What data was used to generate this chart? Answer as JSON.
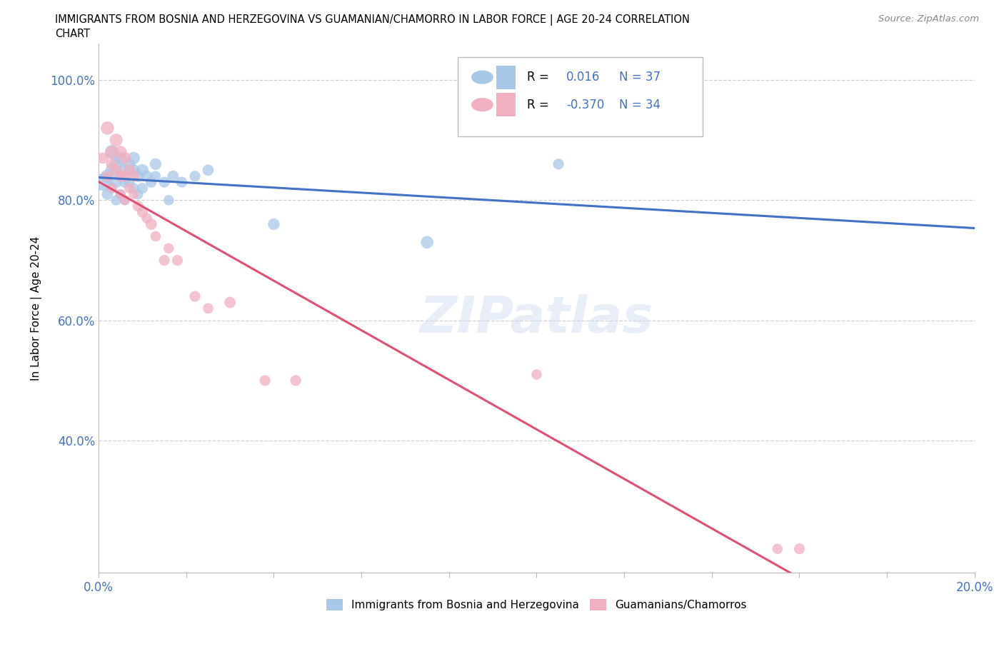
{
  "title_line1": "IMMIGRANTS FROM BOSNIA AND HERZEGOVINA VS GUAMANIAN/CHAMORRO IN LABOR FORCE | AGE 20-24 CORRELATION",
  "title_line2": "CHART",
  "source_text": "Source: ZipAtlas.com",
  "ylabel": "In Labor Force | Age 20-24",
  "xlim": [
    0.0,
    0.2
  ],
  "ylim": [
    0.18,
    1.06
  ],
  "xticks": [
    0.0,
    0.02,
    0.04,
    0.06,
    0.08,
    0.1,
    0.12,
    0.14,
    0.16,
    0.18,
    0.2
  ],
  "xticklabels": [
    "0.0%",
    "",
    "",
    "",
    "",
    "",
    "",
    "",
    "",
    "",
    "20.0%"
  ],
  "yticks": [
    0.4,
    0.6,
    0.8,
    1.0
  ],
  "yticklabels": [
    "40.0%",
    "60.0%",
    "80.0%",
    "100.0%"
  ],
  "r_bosnia": 0.016,
  "n_bosnia": 37,
  "r_guam": -0.37,
  "n_guam": 34,
  "bosnia_color": "#a8c8e8",
  "guam_color": "#f0b0c0",
  "trendline_bosnia_color": "#4472c4",
  "trendline_guam_color": "#e05070",
  "grid_color": "#d0d0d0",
  "background_color": "#ffffff",
  "watermark": "ZIPatlas",
  "bosnia_x": [
    0.001,
    0.002,
    0.002,
    0.003,
    0.003,
    0.003,
    0.004,
    0.004,
    0.004,
    0.005,
    0.005,
    0.005,
    0.006,
    0.006,
    0.006,
    0.007,
    0.007,
    0.008,
    0.008,
    0.008,
    0.009,
    0.009,
    0.01,
    0.01,
    0.011,
    0.012,
    0.013,
    0.013,
    0.015,
    0.016,
    0.017,
    0.019,
    0.022,
    0.025,
    0.04,
    0.075,
    0.105
  ],
  "bosnia_y": [
    0.83,
    0.84,
    0.81,
    0.88,
    0.85,
    0.82,
    0.86,
    0.83,
    0.8,
    0.87,
    0.84,
    0.81,
    0.85,
    0.83,
    0.8,
    0.86,
    0.83,
    0.87,
    0.85,
    0.82,
    0.84,
    0.81,
    0.85,
    0.82,
    0.84,
    0.83,
    0.86,
    0.84,
    0.83,
    0.8,
    0.84,
    0.83,
    0.84,
    0.85,
    0.76,
    0.73,
    0.86
  ],
  "guam_x": [
    0.001,
    0.002,
    0.002,
    0.003,
    0.003,
    0.003,
    0.004,
    0.004,
    0.005,
    0.005,
    0.005,
    0.006,
    0.006,
    0.006,
    0.007,
    0.007,
    0.008,
    0.008,
    0.009,
    0.01,
    0.011,
    0.012,
    0.013,
    0.015,
    0.016,
    0.018,
    0.022,
    0.025,
    0.03,
    0.038,
    0.045,
    0.1,
    0.155,
    0.16
  ],
  "guam_y": [
    0.87,
    0.84,
    0.92,
    0.88,
    0.86,
    0.82,
    0.9,
    0.85,
    0.88,
    0.84,
    0.81,
    0.87,
    0.84,
    0.8,
    0.85,
    0.82,
    0.84,
    0.81,
    0.79,
    0.78,
    0.77,
    0.76,
    0.74,
    0.7,
    0.72,
    0.7,
    0.64,
    0.62,
    0.63,
    0.5,
    0.5,
    0.51,
    0.22,
    0.22
  ],
  "bosnia_sizes": [
    300,
    180,
    130,
    200,
    160,
    120,
    180,
    140,
    110,
    170,
    140,
    110,
    160,
    130,
    100,
    150,
    120,
    160,
    140,
    110,
    140,
    110,
    150,
    120,
    130,
    120,
    140,
    110,
    120,
    110,
    130,
    120,
    120,
    130,
    140,
    160,
    120
  ],
  "guam_sizes": [
    130,
    110,
    180,
    160,
    130,
    100,
    170,
    130,
    160,
    130,
    100,
    150,
    120,
    100,
    140,
    110,
    130,
    100,
    120,
    120,
    110,
    130,
    110,
    120,
    110,
    120,
    120,
    110,
    130,
    120,
    120,
    110,
    110,
    120
  ],
  "legend_r_color": "#4472c4",
  "legend_n_color": "#4472c4"
}
